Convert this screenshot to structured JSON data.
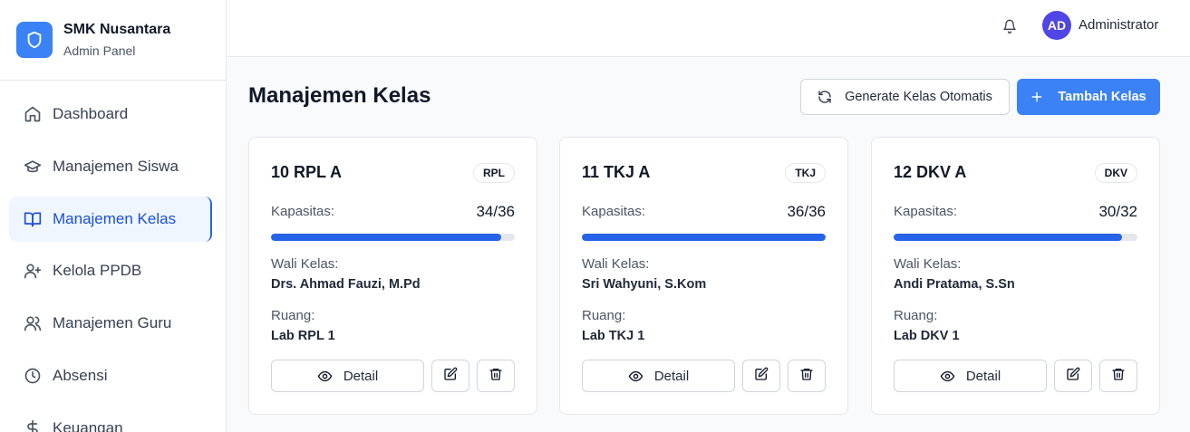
{
  "brand": {
    "name": "SMK Nusantara",
    "subtitle": "Admin Panel",
    "logo_icon": "shield-icon",
    "accent": "#3b82f6"
  },
  "sidebar": {
    "items": [
      {
        "label": "Dashboard",
        "icon": "home-icon",
        "active": false
      },
      {
        "label": "Manajemen Siswa",
        "icon": "graduation-cap-icon",
        "active": false
      },
      {
        "label": "Manajemen Kelas",
        "icon": "book-open-icon",
        "active": true
      },
      {
        "label": "Kelola PPDB",
        "icon": "user-plus-icon",
        "active": false
      },
      {
        "label": "Manajemen Guru",
        "icon": "users-icon",
        "active": false
      },
      {
        "label": "Absensi",
        "icon": "clock-icon",
        "active": false
      },
      {
        "label": "Keuangan",
        "icon": "dollar-icon",
        "active": false
      }
    ]
  },
  "header": {
    "user_initials": "AD",
    "user_name": "Administrator",
    "avatar_color": "#4f46e5"
  },
  "main": {
    "title": "Manajemen Kelas",
    "generate_label": "Generate Kelas Otomatis",
    "add_label": "Tambah Kelas"
  },
  "classes": [
    {
      "name": "10 RPL A",
      "badge": "RPL",
      "capacity_label": "Kapasitas:",
      "capacity": "34/36",
      "fill_fraction": 0.944,
      "wali_label": "Wali Kelas:",
      "wali": "Drs. Ahmad Fauzi, M.Pd",
      "ruang_label": "Ruang:",
      "ruang": "Lab RPL 1",
      "detail_label": "Detail"
    },
    {
      "name": "11 TKJ A",
      "badge": "TKJ",
      "capacity_label": "Kapasitas:",
      "capacity": "36/36",
      "fill_fraction": 1.0,
      "wali_label": "Wali Kelas:",
      "wali": "Sri Wahyuni, S.Kom",
      "ruang_label": "Ruang:",
      "ruang": "Lab TKJ 1",
      "detail_label": "Detail"
    },
    {
      "name": "12 DKV A",
      "badge": "DKV",
      "capacity_label": "Kapasitas:",
      "capacity": "30/32",
      "fill_fraction": 0.9375,
      "wali_label": "Wali Kelas:",
      "wali": "Andi Pratama, S.Sn",
      "ruang_label": "Ruang:",
      "ruang": "Lab DKV 1",
      "detail_label": "Detail"
    }
  ]
}
